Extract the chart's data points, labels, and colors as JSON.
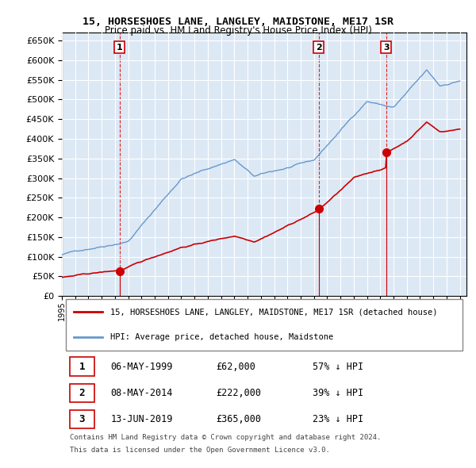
{
  "title": "15, HORSESHOES LANE, LANGLEY, MAIDSTONE, ME17 1SR",
  "subtitle": "Price paid vs. HM Land Registry's House Price Index (HPI)",
  "transactions": [
    {
      "num": "1",
      "date": "06-MAY-1999",
      "date_num": 1999.35,
      "price": 62000,
      "price_str": "£62,000",
      "hpi_pct": "57% ↓ HPI"
    },
    {
      "num": "2",
      "date": "08-MAY-2014",
      "date_num": 2014.35,
      "price": 222000,
      "price_str": "£222,000",
      "hpi_pct": "39% ↓ HPI"
    },
    {
      "num": "3",
      "date": "13-JUN-2019",
      "date_num": 2019.45,
      "price": 365000,
      "price_str": "£365,000",
      "hpi_pct": "23% ↓ HPI"
    }
  ],
  "legend_property": "15, HORSESHOES LANE, LANGLEY, MAIDSTONE, ME17 1SR (detached house)",
  "legend_hpi": "HPI: Average price, detached house, Maidstone",
  "footer_line1": "Contains HM Land Registry data © Crown copyright and database right 2024.",
  "footer_line2": "This data is licensed under the Open Government Licence v3.0.",
  "property_color": "#cc0000",
  "hpi_color": "#6699cc",
  "vline_color": "#dd0000",
  "background_color": "#dde8f5",
  "grid_color": "#ffffff",
  "ylim": [
    0,
    670000
  ],
  "xlim_start": 1995.0,
  "xlim_end": 2025.5
}
